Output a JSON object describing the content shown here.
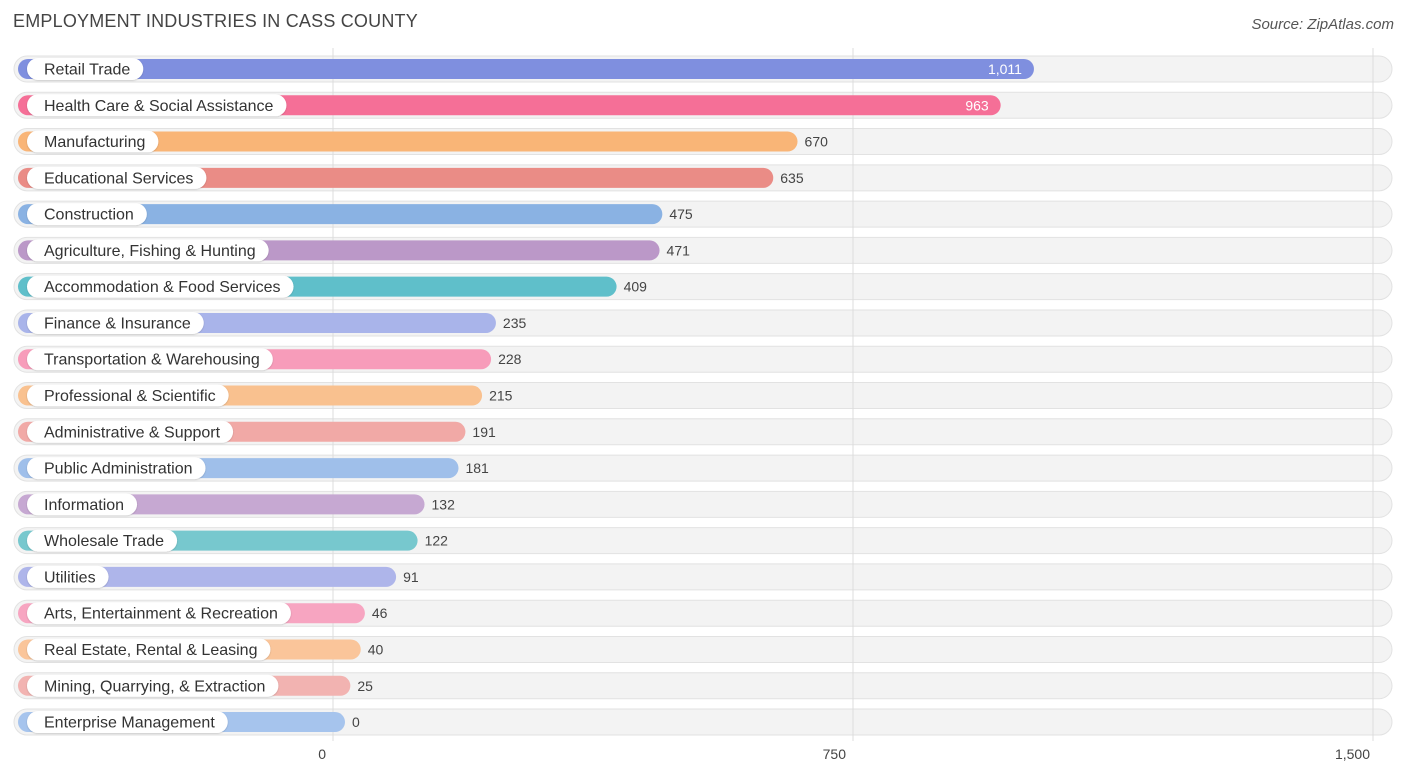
{
  "chart_data": {
    "type": "bar",
    "orientation": "horizontal",
    "title": "EMPLOYMENT INDUSTRIES IN CASS COUNTY",
    "source": "Source: ZipAtlas.com",
    "xlabel": "",
    "ylabel": "",
    "xlim": [
      0,
      1500
    ],
    "ticks": [
      {
        "value": 0,
        "label": "0"
      },
      {
        "value": 750,
        "label": "750"
      },
      {
        "value": 1500,
        "label": "1,500"
      }
    ],
    "grid": true,
    "categories": [
      "Retail Trade",
      "Health Care & Social Assistance",
      "Manufacturing",
      "Educational Services",
      "Construction",
      "Agriculture, Fishing & Hunting",
      "Accommodation & Food Services",
      "Finance & Insurance",
      "Transportation & Warehousing",
      "Professional & Scientific",
      "Administrative & Support",
      "Public Administration",
      "Information",
      "Wholesale Trade",
      "Utilities",
      "Arts, Entertainment & Recreation",
      "Real Estate, Rental & Leasing",
      "Mining, Quarrying, & Extraction",
      "Enterprise Management"
    ],
    "values": [
      1011,
      963,
      670,
      635,
      475,
      471,
      409,
      235,
      228,
      215,
      191,
      181,
      132,
      122,
      91,
      46,
      40,
      25,
      0
    ],
    "value_labels": [
      "1,011",
      "963",
      "670",
      "635",
      "475",
      "471",
      "409",
      "235",
      "228",
      "215",
      "191",
      "181",
      "132",
      "122",
      "91",
      "46",
      "40",
      "25",
      "0"
    ],
    "colors": [
      "#7f8fdf",
      "#f56f97",
      "#f9b577",
      "#ea8c86",
      "#8ab2e3",
      "#bb98c8",
      "#5fbfca",
      "#a9b4ea",
      "#f79cba",
      "#f9c18f",
      "#f1a9a6",
      "#9fbfea",
      "#c6a8d2",
      "#77c8ce",
      "#aeb5ea",
      "#f7a5c1",
      "#fac59a",
      "#f2b3b1",
      "#a6c4ed"
    ],
    "value_inside": [
      true,
      true,
      false,
      false,
      false,
      false,
      false,
      false,
      false,
      false,
      false,
      false,
      false,
      false,
      false,
      false,
      false,
      false,
      false
    ]
  }
}
